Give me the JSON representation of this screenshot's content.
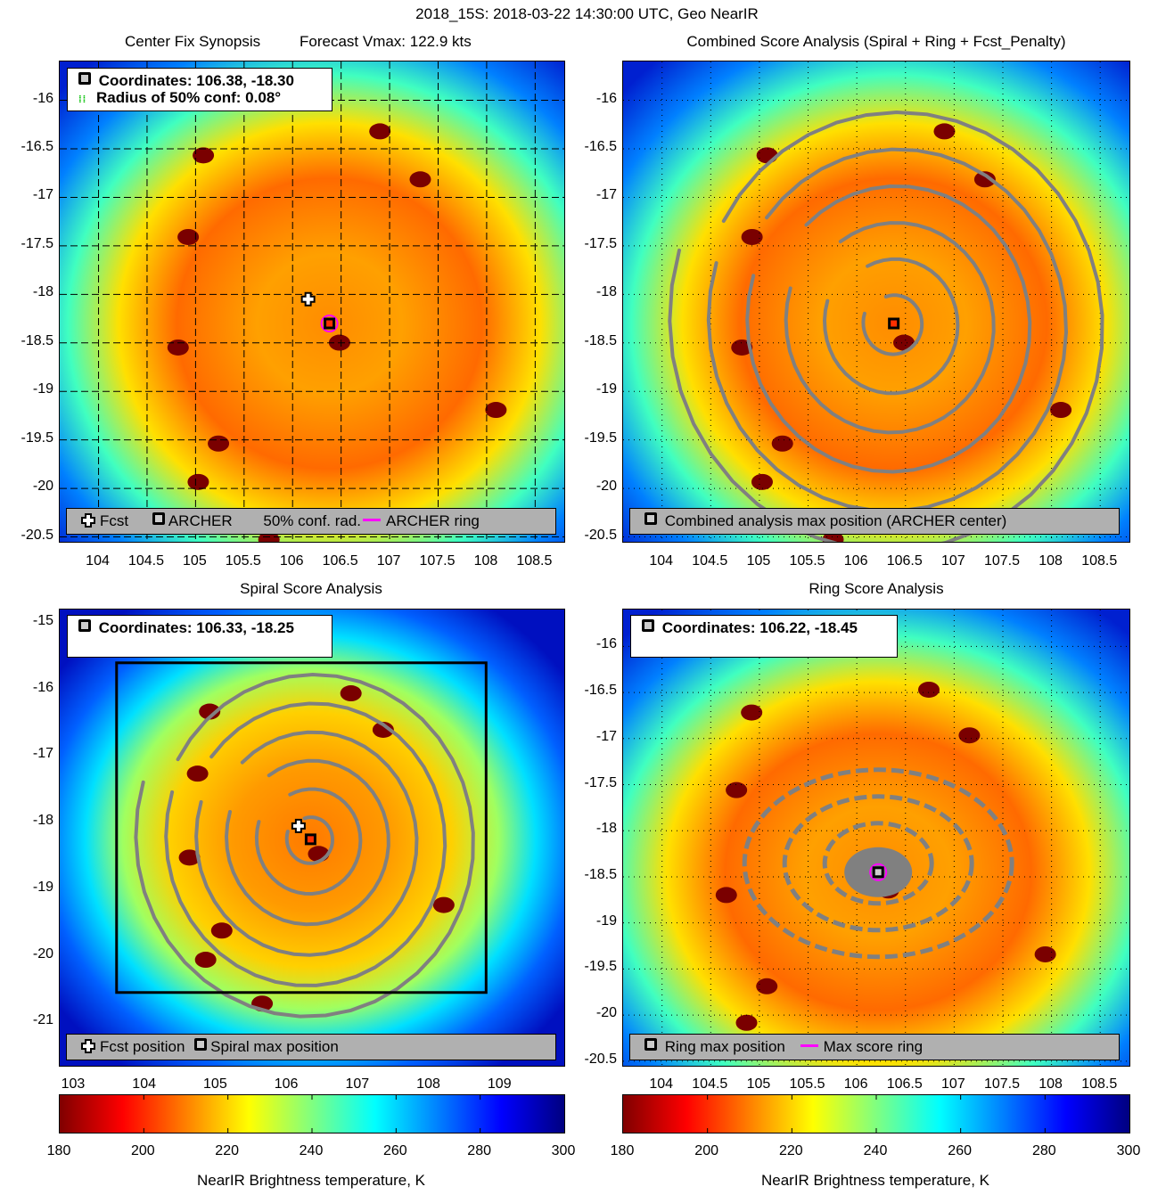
{
  "suptitle": "2018_15S: 2018-03-22 14:30:00 UTC, Geo NearIR",
  "chart_data": [
    {
      "type": "heatmap",
      "id": "center-fix",
      "title_left": "Center Fix Synopsis",
      "title_right": "Forecast Vmax: 122.9 kts",
      "xlim": [
        103.6,
        108.8
      ],
      "ylim": [
        -20.55,
        -15.6
      ],
      "xticks": [
        "104",
        "104.5",
        "105",
        "105.5",
        "106",
        "106.5",
        "107",
        "107.5",
        "108",
        "108.5"
      ],
      "yticks": [
        "-16",
        "-16.5",
        "-17",
        "-17.5",
        "-18",
        "-18.5",
        "-19",
        "-19.5",
        "-20",
        "-20.5"
      ],
      "grid": "dashed+dotted",
      "info_lines": [
        "Coordinates: 106.38, -18.30",
        "Radius of 50% conf: 0.08°"
      ],
      "legend": [
        "Fcst",
        "ARCHER",
        "50% conf. rad.",
        "ARCHER ring"
      ],
      "legend_position": "bottom",
      "center": [
        106.38,
        -18.3
      ],
      "fcst": [
        106.16,
        -18.05
      ],
      "conf_radius_deg": 0.08
    },
    {
      "type": "heatmap",
      "id": "combined-score",
      "title": "Combined Score Analysis (Spiral + Ring + Fcst_Penalty)",
      "xlim": [
        103.6,
        108.8
      ],
      "ylim": [
        -20.55,
        -15.6
      ],
      "xticks": [
        "104",
        "104.5",
        "105",
        "105.5",
        "106",
        "106.5",
        "107",
        "107.5",
        "108",
        "108.5"
      ],
      "yticks": [
        "-16",
        "-16.5",
        "-17",
        "-17.5",
        "-18",
        "-18.5",
        "-19",
        "-19.5",
        "-20",
        "-20.5"
      ],
      "grid": "dotted",
      "legend": [
        "Combined analysis max position (ARCHER center)"
      ],
      "legend_position": "bottom",
      "center": [
        106.38,
        -18.3
      ],
      "overlay": "gray spiral score contours"
    },
    {
      "type": "heatmap",
      "id": "spiral-score",
      "title": "Spiral Score Analysis",
      "xlim": [
        102.8,
        109.9
      ],
      "ylim": [
        -21.65,
        -14.8
      ],
      "xticks": [
        "103",
        "104",
        "105",
        "106",
        "107",
        "108",
        "109"
      ],
      "yticks": [
        "-15",
        "-16",
        "-17",
        "-18",
        "-19",
        "-20",
        "-21"
      ],
      "grid": "none",
      "info_lines": [
        "Coordinates: 106.33, -18.25"
      ],
      "legend": [
        "Fcst position",
        "Spiral max position"
      ],
      "legend_position": "bottom",
      "center": [
        106.33,
        -18.25
      ],
      "fcst": [
        106.16,
        -18.05
      ],
      "search_box": {
        "x": [
          103.6,
          108.8
        ],
        "y": [
          -20.55,
          -15.6
        ]
      }
    },
    {
      "type": "heatmap",
      "id": "ring-score",
      "title": "Ring Score Analysis",
      "xlim": [
        103.6,
        108.8
      ],
      "ylim": [
        -20.55,
        -15.6
      ],
      "xticks": [
        "104",
        "104.5",
        "105",
        "105.5",
        "106",
        "106.5",
        "107",
        "107.5",
        "108",
        "108.5"
      ],
      "yticks": [
        "-16",
        "-16.5",
        "-17",
        "-17.5",
        "-18",
        "-18.5",
        "-19",
        "-19.5",
        "-20",
        "-20.5"
      ],
      "grid": "dotted",
      "info_lines": [
        "Coordinates: 106.22, -18.45"
      ],
      "legend": [
        "Ring max position",
        "Max score ring"
      ],
      "legend_position": "bottom",
      "center": [
        106.22,
        -18.45
      ],
      "overlay": "gray ring score contours"
    }
  ],
  "colorbar": {
    "label": "NearIR Brightness temperature, K",
    "range": [
      180,
      300
    ],
    "ticks": [
      "180",
      "200",
      "220",
      "240",
      "260",
      "280",
      "300"
    ],
    "colormap": [
      "#800000",
      "#ff0000",
      "#ff8000",
      "#ffff00",
      "#80ff80",
      "#00ffff",
      "#0080ff",
      "#0000ff",
      "#000080"
    ]
  },
  "colors": {
    "archer_ring": "#ff00ff",
    "conf_radius": "#00c000",
    "contour": "#808080",
    "legend_bg": "#b0b0b0"
  }
}
